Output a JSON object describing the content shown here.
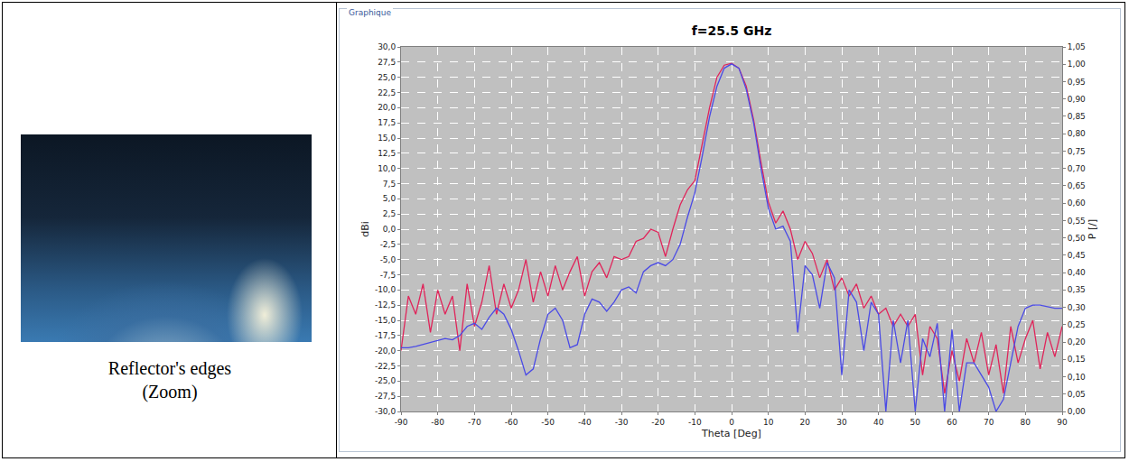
{
  "frame_label": "Graphique",
  "image_caption": "Reflector's edges (Zoom)",
  "chart_data": {
    "type": "line",
    "title": "f=25.5 GHz",
    "x_label": "Theta [Deg]",
    "y_label": "dBi",
    "y2_label": "P [/]",
    "grid": true,
    "xlim": [
      -90,
      90
    ],
    "xticks": [
      -90,
      -80,
      -70,
      -60,
      -50,
      -40,
      -30,
      -20,
      -10,
      0,
      10,
      20,
      30,
      40,
      50,
      60,
      70,
      80,
      90
    ],
    "ylim": [
      -30,
      30
    ],
    "yticks": [
      {
        "value": -30,
        "label": "-30,0"
      },
      {
        "value": -27.5,
        "label": "-27,5"
      },
      {
        "value": -25,
        "label": "-25,0"
      },
      {
        "value": -22.5,
        "label": "-22,5"
      },
      {
        "value": -20,
        "label": "-20,0"
      },
      {
        "value": -17.5,
        "label": "-17,5"
      },
      {
        "value": -15,
        "label": "-15,0"
      },
      {
        "value": -12.5,
        "label": "-12,5"
      },
      {
        "value": -10,
        "label": "-10,0"
      },
      {
        "value": -7.5,
        "label": "-7,5"
      },
      {
        "value": -5,
        "label": "-5,0"
      },
      {
        "value": -2.5,
        "label": "-2,5"
      },
      {
        "value": 0,
        "label": "0,0"
      },
      {
        "value": 2.5,
        "label": "2,5"
      },
      {
        "value": 5,
        "label": "5,0"
      },
      {
        "value": 7.5,
        "label": "7,5"
      },
      {
        "value": 10,
        "label": "10,0"
      },
      {
        "value": 12.5,
        "label": "12,5"
      },
      {
        "value": 15,
        "label": "15,0"
      },
      {
        "value": 17.5,
        "label": "17,5"
      },
      {
        "value": 20,
        "label": "20,0"
      },
      {
        "value": 22.5,
        "label": "22,5"
      },
      {
        "value": 25,
        "label": "25,0"
      },
      {
        "value": 27.5,
        "label": "27,5"
      },
      {
        "value": 30,
        "label": "30,0"
      }
    ],
    "y2lim": [
      0,
      1.05
    ],
    "y2ticks": [
      {
        "value": 0,
        "label": "0,00"
      },
      {
        "value": 0.05,
        "label": "0,05"
      },
      {
        "value": 0.1,
        "label": "0,10"
      },
      {
        "value": 0.15,
        "label": "0,15"
      },
      {
        "value": 0.2,
        "label": "0,20"
      },
      {
        "value": 0.25,
        "label": "0,25"
      },
      {
        "value": 0.3,
        "label": "0,30"
      },
      {
        "value": 0.35,
        "label": "0,35"
      },
      {
        "value": 0.4,
        "label": "0,40"
      },
      {
        "value": 0.45,
        "label": "0,45"
      },
      {
        "value": 0.5,
        "label": "0,50"
      },
      {
        "value": 0.55,
        "label": "0,55"
      },
      {
        "value": 0.6,
        "label": "0,60"
      },
      {
        "value": 0.65,
        "label": "0,65"
      },
      {
        "value": 0.7,
        "label": "0,70"
      },
      {
        "value": 0.75,
        "label": "0,75"
      },
      {
        "value": 0.8,
        "label": "0,80"
      },
      {
        "value": 0.85,
        "label": "0,85"
      },
      {
        "value": 0.9,
        "label": "0,90"
      },
      {
        "value": 0.95,
        "label": "0,95"
      },
      {
        "value": 1,
        "label": "1,00"
      },
      {
        "value": 1.05,
        "label": "1,05"
      }
    ],
    "x": [
      -90,
      -88,
      -86,
      -84,
      -82,
      -80,
      -78,
      -76,
      -74,
      -72,
      -70,
      -68,
      -66,
      -64,
      -62,
      -60,
      -58,
      -56,
      -54,
      -52,
      -50,
      -48,
      -46,
      -44,
      -42,
      -40,
      -38,
      -36,
      -34,
      -32,
      -30,
      -28,
      -26,
      -24,
      -22,
      -20,
      -18,
      -16,
      -14,
      -12,
      -10,
      -8,
      -6,
      -4,
      -2,
      0,
      2,
      4,
      6,
      8,
      10,
      12,
      14,
      16,
      18,
      20,
      22,
      24,
      26,
      28,
      30,
      32,
      34,
      36,
      38,
      40,
      42,
      44,
      46,
      48,
      50,
      52,
      54,
      56,
      58,
      60,
      62,
      64,
      66,
      68,
      70,
      72,
      74,
      76,
      78,
      80,
      82,
      84,
      86,
      88,
      90
    ],
    "series": [
      {
        "color": "#e0245a",
        "line_style": "solid",
        "values": [
          -20,
          -11,
          -14,
          -9,
          -17,
          -10,
          -14,
          -11,
          -20,
          -9,
          -16,
          -12,
          -6,
          -14,
          -9,
          -13,
          -10,
          -5,
          -12,
          -7,
          -11,
          -6,
          -10,
          -7,
          -4.5,
          -11,
          -7,
          -5.5,
          -8,
          -4.5,
          -5,
          -4.5,
          -2,
          -1.5,
          0,
          -0.5,
          -4.5,
          0,
          4,
          6.5,
          8,
          14,
          20,
          25,
          27,
          27.3,
          26.5,
          23.5,
          18,
          11,
          4.5,
          1,
          3,
          0,
          -5,
          -2,
          -4,
          -8,
          -5,
          -10,
          -8,
          -11,
          -9,
          -13,
          -11,
          -14,
          -13,
          -16,
          -14,
          -16,
          -14,
          -24,
          -16,
          -18,
          -27,
          -20,
          -25,
          -18,
          -22,
          -17,
          -24,
          -19,
          -27,
          -16,
          -22,
          -18,
          -15,
          -23,
          -17,
          -21,
          -16
        ]
      },
      {
        "color": "#4a4ae6",
        "line_style": "solid",
        "values": [
          -19.5,
          -19.5,
          -19.3,
          -19,
          -18.7,
          -18.3,
          -18,
          -18.2,
          -17.5,
          -16,
          -15.5,
          -16.5,
          -14.5,
          -13,
          -14,
          -16.5,
          -20,
          -24,
          -23,
          -18,
          -14,
          -13,
          -15,
          -19.5,
          -19,
          -14,
          -11.5,
          -12,
          -13.5,
          -12,
          -10,
          -9.5,
          -10.5,
          -7,
          -6,
          -5.5,
          -6,
          -5,
          -2.5,
          2,
          6,
          12,
          18.5,
          23.5,
          26.5,
          27.2,
          26.5,
          23,
          17.5,
          10,
          3.5,
          0,
          0.5,
          -2,
          -17,
          -6,
          -7.5,
          -13,
          -5.5,
          -8,
          -24,
          -10,
          -12,
          -20,
          -12,
          -14,
          -30,
          -15,
          -22,
          -15,
          -30,
          -18,
          -21,
          -15.5,
          -30,
          -16.5,
          -30,
          -22,
          -22,
          -24,
          -26,
          -30,
          -28,
          -22,
          -16,
          -13,
          -12.5,
          -12.5,
          -12.7,
          -13,
          -13
        ]
      }
    ]
  }
}
